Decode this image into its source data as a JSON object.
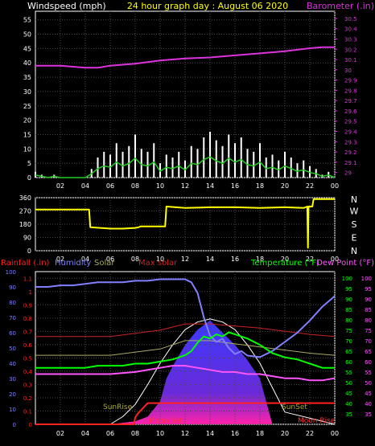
{
  "colors": {
    "background": "#000000",
    "grid": "#4a4a4a",
    "axis": "#ffffff",
    "windspeed": "#ffffff",
    "windavg": "#22cc22",
    "barometer": "#dd33dd",
    "direction": "#ffff00",
    "rainfall": "#ff2222",
    "humidity": "#8080ff",
    "solar": "#aaaa66",
    "maxsolar": "#cc2222",
    "temperature": "#00ff00",
    "dewpoint": "#ff55ff",
    "solar_fill": "#3030ff",
    "title": "#ffff00",
    "sun_text": "#aaaa33",
    "moon_text": "#ff3333"
  },
  "top": {
    "left_label": "Windspeed (mph)",
    "title": "24 hour graph day : August 06 2020",
    "right_label": "Barometer (.in)",
    "left_ticks": [
      "55",
      "50",
      "45",
      "40",
      "35",
      "30",
      "25",
      "20",
      "15",
      "10",
      "5",
      "0"
    ],
    "right_ticks": [
      "30.5",
      "30.4",
      "30.3",
      "30.2",
      "30.1",
      "30",
      "29.9",
      "29.8",
      "29.7",
      "29.6",
      "29.5",
      "29.4",
      "29.3",
      "29.2",
      "29.1",
      "29"
    ],
    "x_ticks": [
      "02",
      "04",
      "06",
      "08",
      "10",
      "12",
      "14",
      "16",
      "18",
      "20",
      "22",
      "00"
    ]
  },
  "middle": {
    "left_ticks": [
      "360",
      "270",
      "180",
      "90",
      "0"
    ],
    "compass": [
      "N",
      "W",
      "S",
      "E",
      "N"
    ],
    "x_ticks": [
      "02",
      "04",
      "06",
      "08",
      "10",
      "12",
      "14",
      "16",
      "18",
      "20",
      "22",
      "00"
    ]
  },
  "bottom": {
    "labels": {
      "rainfall": "Rainfall (.in)",
      "humidity": "Humidity",
      "solar": "Solar",
      "maxsolar": "Max solar",
      "temperature": "Temperature (°F)",
      "dewpoint": "Dew Point (°F)"
    },
    "rain_ticks": [
      "1.1",
      "1",
      "0.9",
      "0.8",
      "0.7",
      "0.6",
      "0.5",
      "0.4",
      "0.3",
      "0.2",
      "0.1",
      "0"
    ],
    "humidity_ticks": [
      "100",
      "90",
      "80",
      "70",
      "60",
      "50",
      "40",
      "30",
      "20",
      "10",
      "0"
    ],
    "temp_ticks": [
      "100",
      "95",
      "90",
      "85",
      "80",
      "75",
      "70",
      "65",
      "60",
      "55",
      "50",
      "45",
      "40",
      "35"
    ],
    "x_ticks": [
      "02",
      "04",
      "06",
      "08",
      "10",
      "12",
      "14",
      "16",
      "18",
      "20",
      "22",
      "00"
    ],
    "annotations": {
      "sunrise": "SunRise",
      "sunset": "SunSet",
      "moonset": "Moon Set",
      "moonrise": "Moon Rise"
    }
  },
  "chart_data": [
    {
      "type": "line",
      "title": "24 hour graph day : August 06 2020",
      "x_unit": "hour",
      "xlim": [
        0,
        24
      ],
      "series": [
        {
          "name": "Windspeed (mph)",
          "axis": "left",
          "ylim": [
            0,
            58
          ],
          "x": [
            0,
            0.5,
            1,
            1.5,
            2,
            2.5,
            3,
            3.5,
            4,
            4.5,
            5,
            5.5,
            6,
            6.5,
            7,
            7.5,
            8,
            8.5,
            9,
            9.5,
            10,
            10.5,
            11,
            11.5,
            12,
            12.5,
            13,
            13.5,
            14,
            14.5,
            15,
            15.5,
            16,
            16.5,
            17,
            17.5,
            18,
            18.5,
            19,
            19.5,
            20,
            20.5,
            21,
            21.5,
            22,
            22.5,
            23,
            23.5,
            24
          ],
          "y": [
            2,
            1,
            0,
            1,
            0,
            0,
            0,
            0,
            0,
            3,
            7,
            9,
            8,
            12,
            9,
            11,
            15,
            10,
            9,
            12,
            5,
            8,
            7,
            9,
            6,
            11,
            10,
            14,
            16,
            13,
            11,
            15,
            12,
            14,
            10,
            9,
            12,
            7,
            8,
            6,
            9,
            7,
            5,
            6,
            4,
            3,
            1,
            2,
            0
          ]
        },
        {
          "name": "Barometer (.in)",
          "axis": "right",
          "ylim": [
            28.95,
            30.57
          ],
          "x": [
            0,
            2,
            4,
            5,
            6,
            8,
            10,
            12,
            14,
            16,
            18,
            20,
            22,
            23,
            24
          ],
          "y": [
            30.04,
            30.04,
            30.02,
            30.02,
            30.04,
            30.06,
            30.09,
            30.11,
            30.12,
            30.14,
            30.16,
            30.18,
            30.21,
            30.22,
            30.22
          ]
        }
      ]
    },
    {
      "type": "line",
      "x_unit": "hour",
      "xlim": [
        0,
        24
      ],
      "ylim": [
        0,
        360
      ],
      "series": [
        {
          "name": "Wind direction",
          "x": [
            0,
            4.3,
            4.4,
            6,
            7,
            8,
            8.3,
            8.4,
            9.5,
            10.4,
            10.5,
            12,
            14,
            16,
            18,
            20,
            21.5,
            21.8,
            21.85,
            21.9,
            22.2,
            22.3,
            24
          ],
          "y": [
            280,
            280,
            160,
            150,
            150,
            155,
            160,
            165,
            165,
            165,
            300,
            290,
            295,
            295,
            290,
            295,
            290,
            300,
            20,
            300,
            300,
            350,
            350
          ]
        }
      ]
    },
    {
      "type": "line",
      "x_unit": "hour",
      "xlim": [
        0,
        24
      ],
      "series": [
        {
          "name": "Humidity",
          "axis": "humidity",
          "ylim": [
            0,
            100
          ],
          "x": [
            0,
            1,
            2,
            3,
            4,
            5,
            6,
            7,
            8,
            9,
            10,
            11,
            12,
            12.5,
            13,
            13.5,
            14,
            14.5,
            15,
            15.5,
            16,
            16.5,
            17,
            18,
            19,
            20,
            21,
            22,
            23,
            24
          ],
          "y": [
            90,
            90,
            91,
            91,
            92,
            93,
            93,
            93,
            94,
            94,
            95,
            95,
            95,
            93,
            86,
            70,
            58,
            54,
            56,
            50,
            46,
            48,
            45,
            44,
            48,
            54,
            60,
            68,
            77,
            84
          ]
        },
        {
          "name": "Temperature (°F)",
          "axis": "temp",
          "ylim": [
            30,
            103
          ],
          "x": [
            0,
            1,
            2,
            3,
            4,
            5,
            6,
            7,
            8,
            9,
            10,
            11,
            12,
            12.5,
            13,
            13.5,
            14,
            14.5,
            15,
            15.5,
            16,
            17,
            18,
            19,
            20,
            21,
            22,
            23,
            24
          ],
          "y": [
            57,
            57,
            57,
            57,
            57,
            58,
            58,
            58,
            59,
            59,
            60,
            61,
            63,
            65,
            69,
            72,
            71,
            73,
            72,
            74,
            73,
            71,
            68,
            64,
            62,
            61,
            59,
            57,
            57
          ]
        },
        {
          "name": "Dew Point (°F)",
          "axis": "temp",
          "ylim": [
            30,
            103
          ],
          "x": [
            0,
            2,
            4,
            6,
            8,
            10,
            11,
            12,
            13,
            14,
            15,
            16,
            17,
            18,
            19,
            20,
            21,
            22,
            23,
            24
          ],
          "y": [
            54,
            54,
            54,
            54,
            55,
            57,
            58,
            58,
            57,
            56,
            55,
            55,
            54,
            54,
            53,
            52,
            52,
            51,
            51,
            52
          ]
        },
        {
          "name": "Solar",
          "axis": "humidity",
          "ylim": [
            0,
            100
          ],
          "x": [
            0,
            6,
            8,
            9,
            10,
            10.5,
            11,
            12,
            13,
            14,
            15,
            16,
            17,
            18,
            19,
            24
          ],
          "y": [
            0,
            0,
            2,
            5,
            15,
            30,
            38,
            52,
            62,
            68,
            60,
            52,
            42,
            30,
            0,
            0
          ]
        },
        {
          "name": "Max solar",
          "axis": "humidity",
          "ylim": [
            0,
            100
          ],
          "x": [
            0,
            6,
            7,
            8,
            9,
            10,
            11,
            12,
            13,
            14,
            15,
            16,
            17,
            18,
            19,
            20,
            24
          ],
          "y": [
            0,
            0,
            5,
            13,
            26,
            40,
            52,
            62,
            67,
            69,
            67,
            62,
            52,
            40,
            24,
            8,
            0
          ]
        },
        {
          "name": "Rainfall (.in)",
          "axis": "rain",
          "ylim": [
            0,
            1.15
          ],
          "x": [
            0,
            7.9,
            8,
            8.2,
            8.4,
            8.6,
            8.8,
            9,
            24
          ],
          "y": [
            0,
            0,
            0.05,
            0.08,
            0.1,
            0.12,
            0.14,
            0.16,
            0.16
          ]
        }
      ]
    }
  ]
}
